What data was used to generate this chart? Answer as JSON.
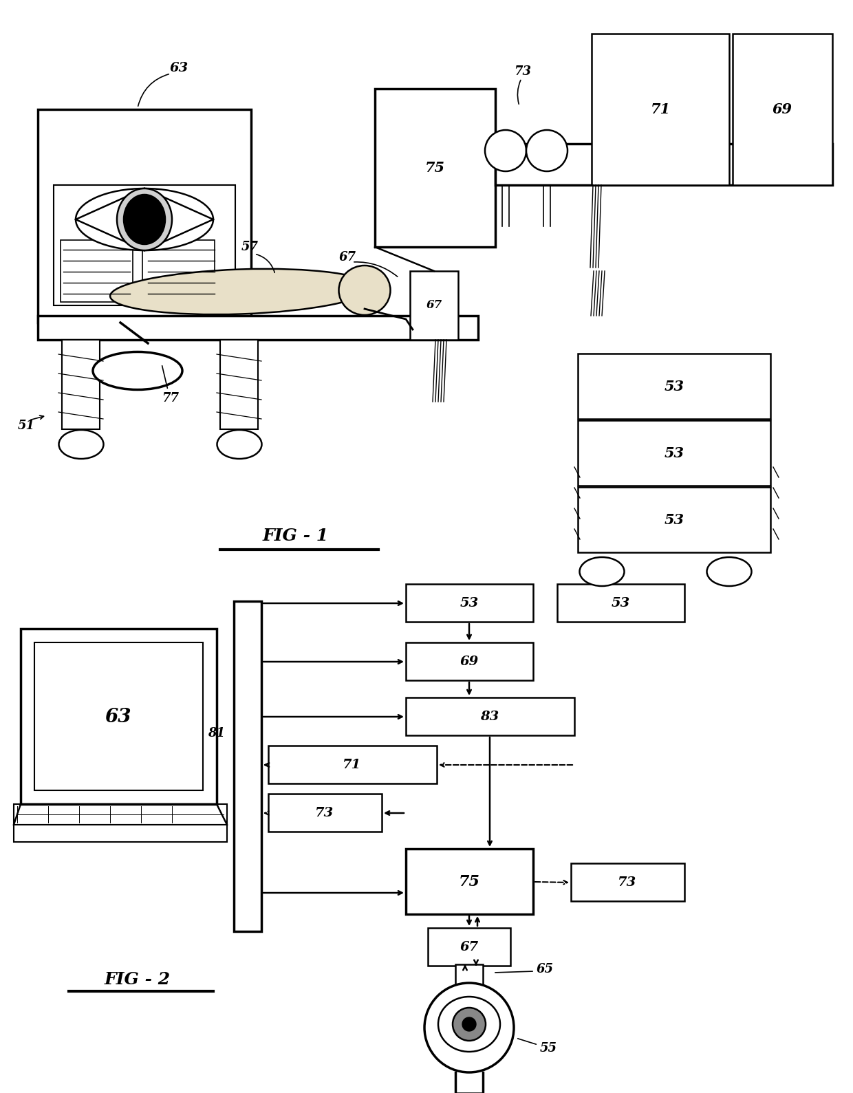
{
  "background_color": "#ffffff",
  "fig1_title": "FIG - 1",
  "fig2_title": "FIG - 2"
}
